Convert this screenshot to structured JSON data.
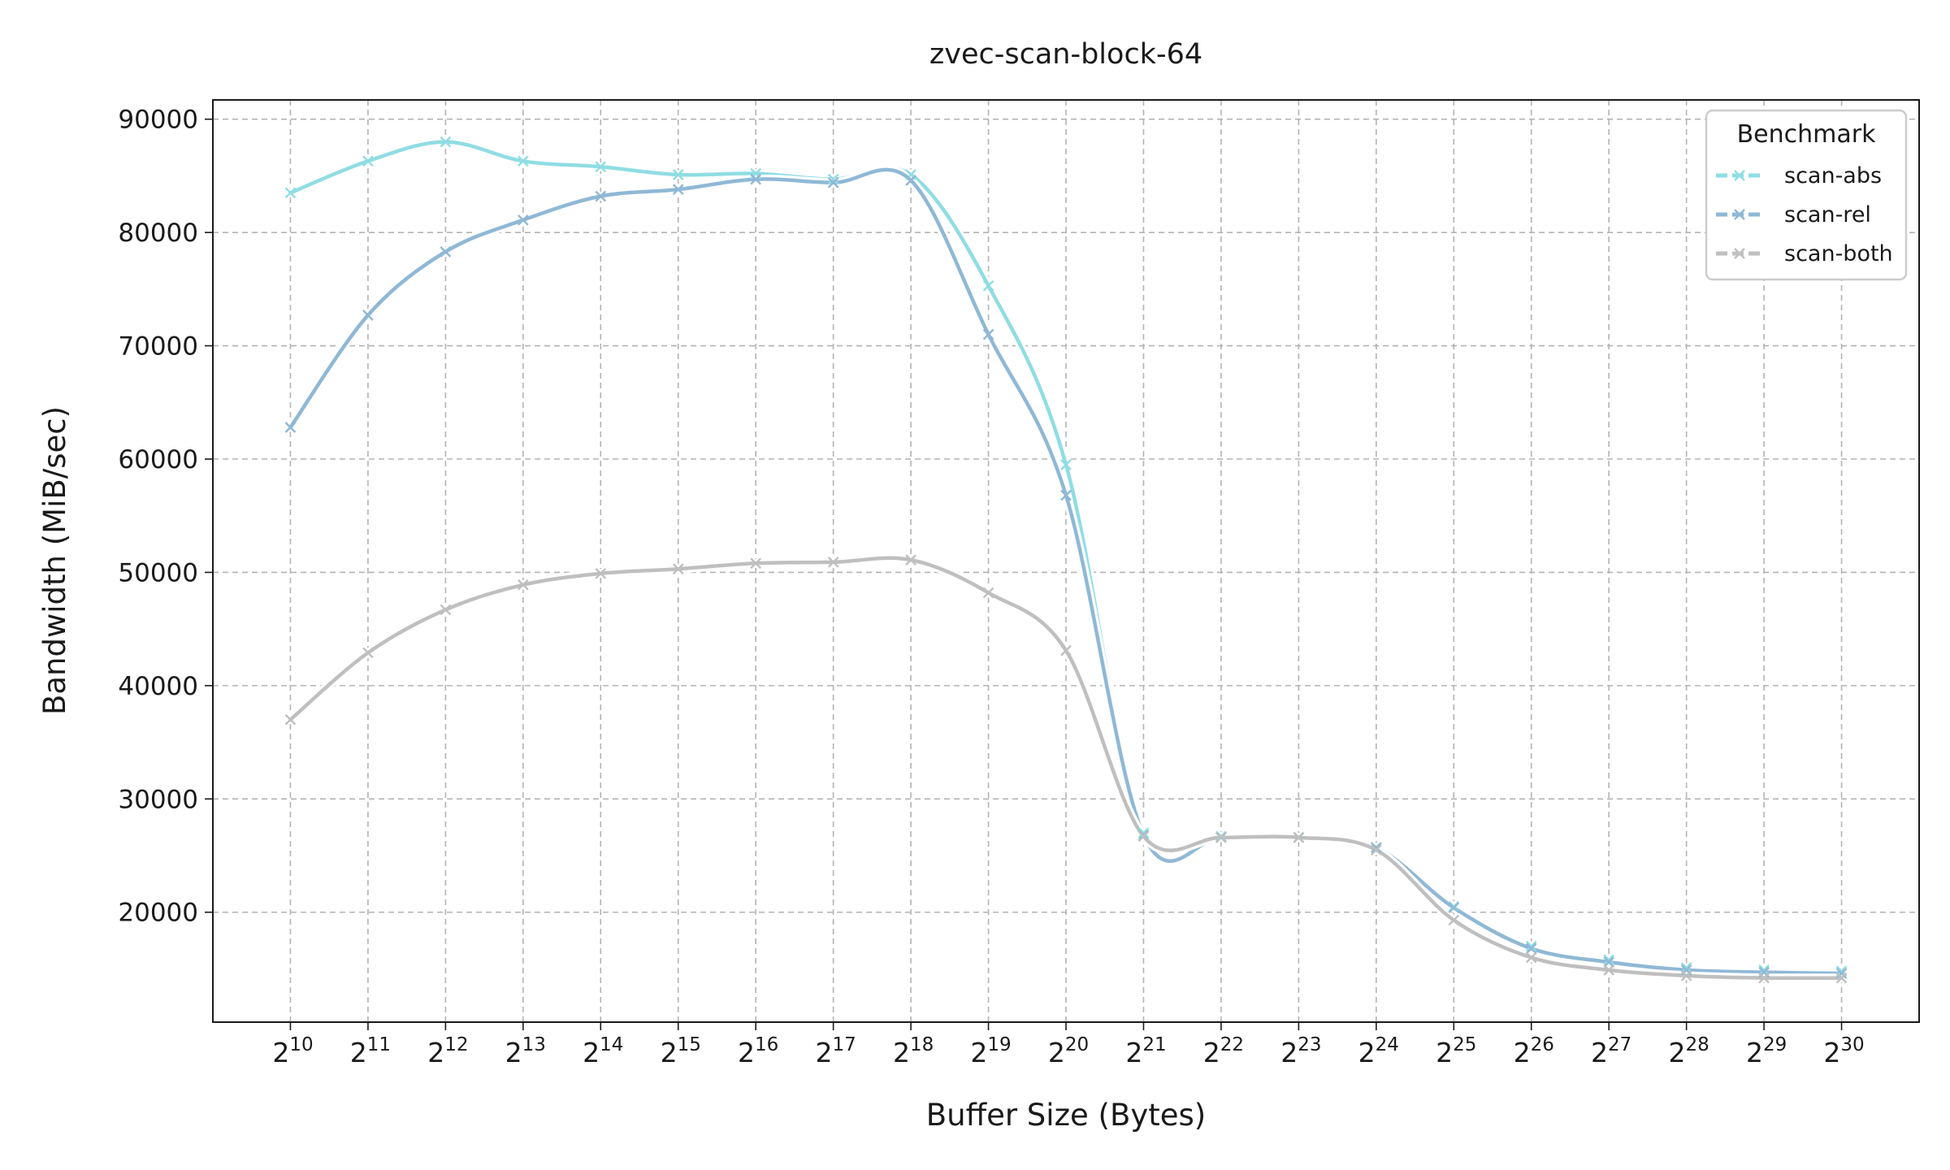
{
  "chart_data": {
    "type": "line",
    "title": "zvec-scan-block-64",
    "xlabel": "Buffer Size (Bytes)",
    "ylabel": "Bandwidth (MiB/sec)",
    "x_scale": "log2",
    "x": [
      10,
      11,
      12,
      13,
      14,
      15,
      16,
      17,
      18,
      19,
      20,
      21,
      22,
      23,
      24,
      25,
      26,
      27,
      28,
      29,
      30
    ],
    "x_tick_labels": [
      {
        "base": "2",
        "exp": "10"
      },
      {
        "base": "2",
        "exp": "11"
      },
      {
        "base": "2",
        "exp": "12"
      },
      {
        "base": "2",
        "exp": "13"
      },
      {
        "base": "2",
        "exp": "14"
      },
      {
        "base": "2",
        "exp": "15"
      },
      {
        "base": "2",
        "exp": "16"
      },
      {
        "base": "2",
        "exp": "17"
      },
      {
        "base": "2",
        "exp": "18"
      },
      {
        "base": "2",
        "exp": "19"
      },
      {
        "base": "2",
        "exp": "20"
      },
      {
        "base": "2",
        "exp": "21"
      },
      {
        "base": "2",
        "exp": "22"
      },
      {
        "base": "2",
        "exp": "23"
      },
      {
        "base": "2",
        "exp": "24"
      },
      {
        "base": "2",
        "exp": "25"
      },
      {
        "base": "2",
        "exp": "26"
      },
      {
        "base": "2",
        "exp": "27"
      },
      {
        "base": "2",
        "exp": "28"
      },
      {
        "base": "2",
        "exp": "29"
      },
      {
        "base": "2",
        "exp": "30"
      }
    ],
    "y_ticks": [
      20000,
      30000,
      40000,
      50000,
      60000,
      70000,
      80000,
      90000
    ],
    "y_tick_labels": [
      "20000",
      "30000",
      "40000",
      "50000",
      "60000",
      "70000",
      "80000",
      "90000"
    ],
    "xlim": [
      9,
      31
    ],
    "ylim": [
      10300,
      91700
    ],
    "grid": true,
    "legend": {
      "title": "Benchmark",
      "placement": "top-right"
    },
    "series": [
      {
        "name": "scan-abs",
        "color": "#8fdde3",
        "values": [
          83500,
          86300,
          88000,
          86300,
          85800,
          85100,
          85200,
          84700,
          85100,
          75300,
          59500,
          27000,
          26700,
          26600,
          25700,
          20500,
          17000,
          15800,
          15100,
          14900,
          14800
        ]
      },
      {
        "name": "scan-rel",
        "color": "#8fb8d6",
        "values": [
          62800,
          72700,
          78300,
          81100,
          83200,
          83800,
          84700,
          84400,
          84600,
          71000,
          56800,
          26800,
          26600,
          26600,
          25700,
          20400,
          16800,
          15600,
          14900,
          14700,
          14600
        ]
      },
      {
        "name": "scan-both",
        "color": "#bfbfbf",
        "values": [
          37000,
          42900,
          46700,
          48900,
          49900,
          50300,
          50800,
          50900,
          51100,
          48200,
          43100,
          26700,
          26600,
          26600,
          25500,
          19300,
          16000,
          14900,
          14400,
          14200,
          14200
        ]
      }
    ]
  }
}
